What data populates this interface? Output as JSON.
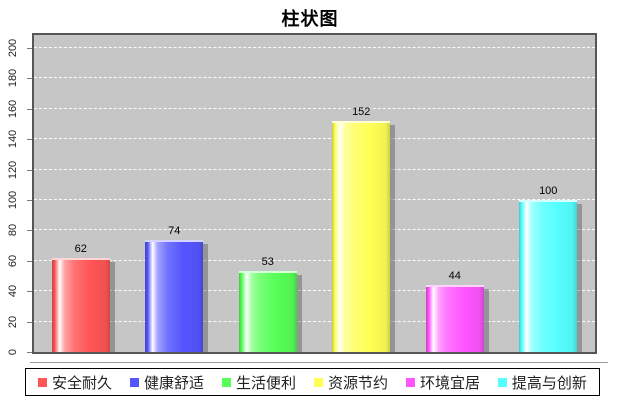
{
  "chart_data": {
    "type": "bar",
    "title": "柱状图",
    "categories": [
      "安全耐久",
      "健康舒适",
      "生活便利",
      "资源节约",
      "环境宜居",
      "提高与创新"
    ],
    "values": [
      62,
      74,
      53,
      152,
      44,
      100
    ],
    "bar_colors": [
      "#ff5555",
      "#5555ff",
      "#55ff55",
      "#ffff55",
      "#ff55ff",
      "#55ffff"
    ],
    "ylim": [
      0,
      200
    ],
    "yticks": [
      0,
      20,
      40,
      60,
      80,
      100,
      120,
      140,
      160,
      180,
      200
    ],
    "xlabel": "",
    "ylabel": "",
    "grid": {
      "horizontal": true,
      "style": "dashed",
      "color": "#ffffff"
    },
    "plot_background": "#c6c6c6",
    "legend_position": "bottom"
  }
}
